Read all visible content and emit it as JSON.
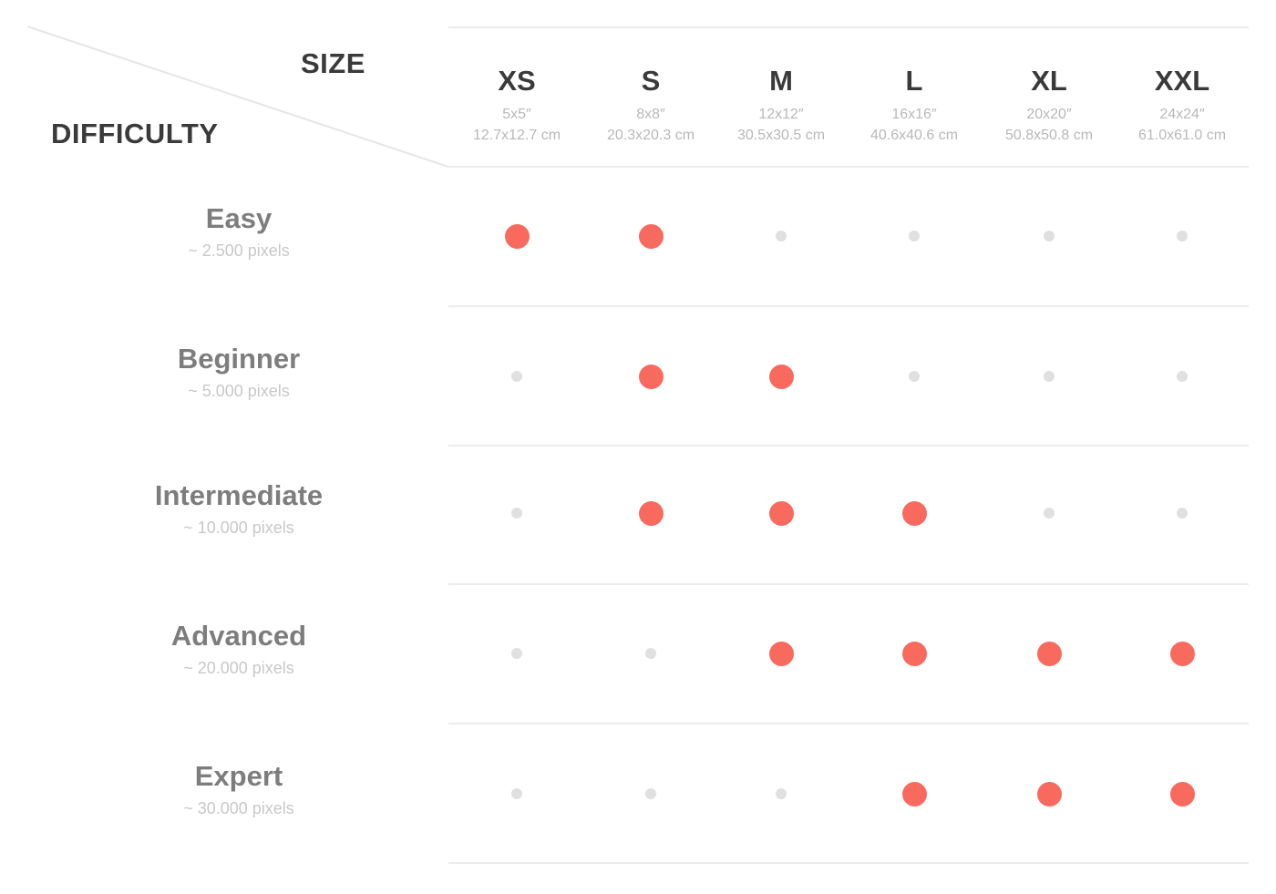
{
  "header": {
    "size_label": "SIZE",
    "difficulty_label": "DIFFICULTY"
  },
  "sizes": [
    {
      "label": "XS",
      "inches": "5x5″",
      "cm": "12.7x12.7 cm"
    },
    {
      "label": "S",
      "inches": "8x8″",
      "cm": "20.3x20.3 cm"
    },
    {
      "label": "M",
      "inches": "12x12″",
      "cm": "30.5x30.5 cm"
    },
    {
      "label": "L",
      "inches": "16x16″",
      "cm": "40.6x40.6 cm"
    },
    {
      "label": "XL",
      "inches": "20x20″",
      "cm": "50.8x50.8 cm"
    },
    {
      "label": "XXL",
      "inches": "24x24″",
      "cm": "61.0x61.0 cm"
    }
  ],
  "difficulties": [
    {
      "label": "Easy",
      "pixels": "~ 2.500 pixels",
      "available": [
        true,
        true,
        false,
        false,
        false,
        false
      ]
    },
    {
      "label": "Beginner",
      "pixels": "~ 5.000 pixels",
      "available": [
        false,
        true,
        true,
        false,
        false,
        false
      ]
    },
    {
      "label": "Intermediate",
      "pixels": "~ 10.000 pixels",
      "available": [
        false,
        true,
        true,
        true,
        false,
        false
      ]
    },
    {
      "label": "Advanced",
      "pixels": "~ 20.000 pixels",
      "available": [
        false,
        false,
        true,
        true,
        true,
        true
      ]
    },
    {
      "label": "Expert",
      "pixels": "~ 30.000 pixels",
      "available": [
        false,
        false,
        false,
        true,
        true,
        true
      ]
    }
  ],
  "colors": {
    "available": "#f96a5e",
    "unavailable": "#e0e0e0"
  }
}
